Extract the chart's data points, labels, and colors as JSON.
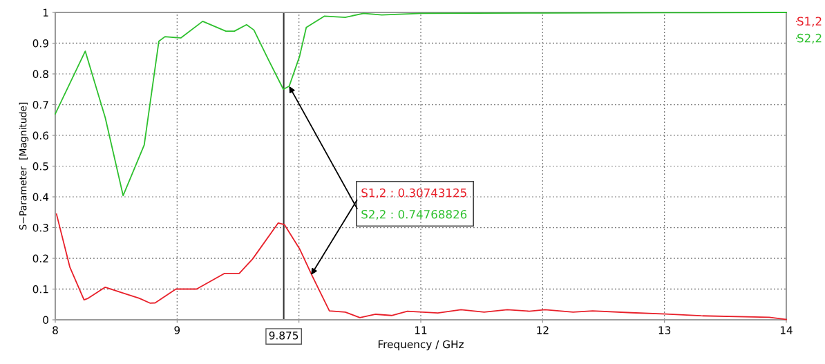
{
  "chart_data": {
    "type": "line",
    "xlabel": "Frequency / GHz",
    "ylabel": "S−Parameter  [Magnitude]",
    "xlim": [
      8,
      14
    ],
    "ylim": [
      0,
      1
    ],
    "xticks": [
      8,
      9,
      {
        "value": 10,
        "label": null
      },
      11,
      12,
      13,
      14
    ],
    "yticks": [
      0,
      0.1,
      0.2,
      0.3,
      0.4,
      0.5,
      0.6,
      0.7,
      0.8,
      0.9,
      1
    ],
    "grid": true,
    "legend": "top right",
    "marker": "none",
    "line_style": "solid",
    "ref_lines": [
      {
        "axis": "x",
        "value": 9.875,
        "label": "9.875",
        "color": "#333333"
      }
    ],
    "annotations": [
      {
        "text": "S1,2 : 0.30743125",
        "x": 10.1,
        "y": 0.146
      },
      {
        "text": "S2,2 : 0.74768826",
        "x": 9.92,
        "y": 0.76
      }
    ],
    "series": [
      {
        "name": "S1,2",
        "color": "#e8202a",
        "x": [
          8.01,
          8.12,
          8.236,
          8.27,
          8.41,
          8.54,
          8.69,
          8.78,
          8.82,
          8.99,
          9.16,
          9.39,
          9.51,
          9.62,
          9.83,
          9.88,
          10.005,
          10.11,
          10.25,
          10.38,
          10.5,
          10.63,
          10.76,
          10.89,
          11.14,
          11.33,
          11.52,
          11.71,
          11.89,
          12.02,
          12.25,
          12.41,
          12.73,
          13.01,
          13.3,
          13.86,
          14.0
        ],
        "values": [
          0.344,
          0.171,
          0.065,
          0.07,
          0.106,
          0.089,
          0.07,
          0.054,
          0.055,
          0.1,
          0.1,
          0.151,
          0.151,
          0.198,
          0.315,
          0.31,
          0.231,
          0.142,
          0.029,
          0.025,
          0.007,
          0.018,
          0.014,
          0.028,
          0.022,
          0.033,
          0.025,
          0.033,
          0.028,
          0.033,
          0.025,
          0.029,
          0.023,
          0.019,
          0.013,
          0.008,
          0.001
        ]
      },
      {
        "name": "S2,2",
        "color": "#2ec02e",
        "x": [
          8.0,
          8.246,
          8.41,
          8.557,
          8.73,
          8.85,
          8.9,
          9.03,
          9.21,
          9.4,
          9.47,
          9.57,
          9.63,
          9.75,
          9.872,
          9.92,
          10.005,
          10.06,
          10.21,
          10.38,
          10.53,
          10.68,
          11.0,
          12.0,
          13.0,
          14.0
        ],
        "values": [
          0.67,
          0.874,
          0.658,
          0.404,
          0.569,
          0.906,
          0.921,
          0.917,
          0.971,
          0.939,
          0.939,
          0.96,
          0.943,
          0.846,
          0.75,
          0.76,
          0.857,
          0.951,
          0.988,
          0.984,
          0.997,
          0.992,
          0.997,
          0.998,
          0.999,
          1.0
        ]
      }
    ]
  }
}
